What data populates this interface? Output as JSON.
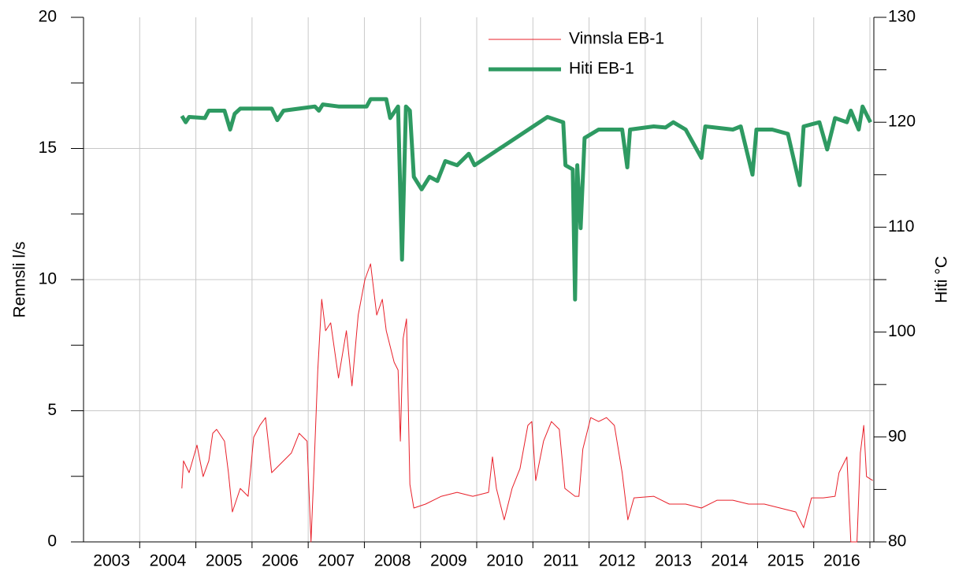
{
  "chart_data": {
    "type": "line",
    "ylabel": "Rennsli l/s",
    "y2label": "Hiti °C",
    "xlim": [
      2003,
      2017.07
    ],
    "xticks": [
      {
        "value": 2003.5,
        "label": "2003"
      },
      {
        "value": 2004.5,
        "label": "2004"
      },
      {
        "value": 2005.5,
        "label": "2005"
      },
      {
        "value": 2006.5,
        "label": "2006"
      },
      {
        "value": 2007.5,
        "label": "2007"
      },
      {
        "value": 2008.5,
        "label": "2008"
      },
      {
        "value": 2009.5,
        "label": "2009"
      },
      {
        "value": 2010.5,
        "label": "2010"
      },
      {
        "value": 2011.5,
        "label": "2011"
      },
      {
        "value": 2012.5,
        "label": "2012"
      },
      {
        "value": 2013.5,
        "label": "2013"
      },
      {
        "value": 2014.5,
        "label": "2014"
      },
      {
        "value": 2015.5,
        "label": "2015"
      },
      {
        "value": 2016.5,
        "label": "2016"
      }
    ],
    "xgrid": [
      2004,
      2005,
      2006,
      2007,
      2008,
      2009,
      2010,
      2011,
      2012,
      2013,
      2014,
      2015,
      2016,
      2017
    ],
    "ylim": [
      0,
      20
    ],
    "yticks": [
      0,
      5,
      10,
      15,
      20
    ],
    "yminor": [
      2.5,
      7.5,
      12.5,
      17.5
    ],
    "y2lim": [
      80,
      130
    ],
    "y2ticks": [
      80,
      90,
      100,
      110,
      120,
      130
    ],
    "y2minor": [
      85,
      95,
      105,
      115,
      125
    ],
    "grid": true,
    "legend": "upper center",
    "series": [
      {
        "name": "Vinnsla EB-1",
        "color": "#e8202a",
        "width": 1,
        "axis": "y",
        "x": [
          2004.75,
          2004.78,
          2004.88,
          2005.02,
          2005.13,
          2005.23,
          2005.3,
          2005.37,
          2005.51,
          2005.58,
          2005.65,
          2005.79,
          2005.93,
          2006.03,
          2006.14,
          2006.24,
          2006.35,
          2006.49,
          2006.7,
          2006.84,
          2006.98,
          2007.05,
          2007.1,
          2007.17,
          2007.24,
          2007.31,
          2007.4,
          2007.54,
          2007.68,
          2007.78,
          2007.89,
          2008.01,
          2008.11,
          2008.22,
          2008.32,
          2008.39,
          2008.53,
          2008.6,
          2008.64,
          2008.69,
          2008.75,
          2008.81,
          2008.88,
          2009.09,
          2009.37,
          2009.65,
          2009.93,
          2010.21,
          2010.28,
          2010.35,
          2010.49,
          2010.63,
          2010.77,
          2010.91,
          2010.98,
          2011.05,
          2011.19,
          2011.33,
          2011.47,
          2011.57,
          2011.75,
          2011.82,
          2011.89,
          2012.03,
          2012.17,
          2012.31,
          2012.45,
          2012.59,
          2012.69,
          2012.8,
          2013.15,
          2013.43,
          2013.72,
          2014.0,
          2014.28,
          2014.56,
          2014.84,
          2015.12,
          2015.4,
          2015.68,
          2015.82,
          2015.96,
          2016.17,
          2016.38,
          2016.45,
          2016.52,
          2016.59,
          2016.66,
          2016.77,
          2016.83,
          2016.89,
          2016.94,
          2017.05
        ],
        "values": [
          2.04,
          3.09,
          2.64,
          3.69,
          2.49,
          3.09,
          4.14,
          4.29,
          3.84,
          2.64,
          1.14,
          2.04,
          1.74,
          3.99,
          4.44,
          4.74,
          2.64,
          2.94,
          3.39,
          4.14,
          3.84,
          0,
          2.64,
          6.55,
          9.25,
          8.05,
          8.35,
          6.25,
          8.05,
          5.95,
          8.65,
          10.0,
          10.6,
          8.65,
          9.25,
          8.05,
          6.85,
          6.55,
          3.84,
          7.75,
          8.5,
          2.19,
          1.29,
          1.44,
          1.74,
          1.89,
          1.74,
          1.89,
          3.24,
          2.04,
          0.84,
          2.04,
          2.79,
          4.44,
          4.59,
          2.34,
          3.84,
          4.59,
          4.29,
          2.04,
          1.74,
          1.74,
          3.54,
          4.74,
          4.59,
          4.74,
          4.44,
          2.64,
          0.84,
          1.68,
          1.74,
          1.44,
          1.44,
          1.29,
          1.59,
          1.59,
          1.44,
          1.44,
          1.29,
          1.14,
          0.54,
          1.68,
          1.68,
          1.74,
          2.64,
          2.94,
          3.24,
          0,
          0,
          3.39,
          4.44,
          2.49,
          2.34
        ]
      },
      {
        "name": "Hiti EB-1",
        "color": "#2e9a62",
        "width": 5,
        "axis": "y2",
        "x": [
          2004.75,
          2004.82,
          2004.88,
          2005.16,
          2005.23,
          2005.51,
          2005.61,
          2005.69,
          2005.79,
          2006.35,
          2006.45,
          2006.56,
          2007.12,
          2007.19,
          2007.26,
          2007.54,
          2008.04,
          2008.11,
          2008.39,
          2008.46,
          2008.6,
          2008.67,
          2008.74,
          2008.81,
          2008.88,
          2009.02,
          2009.16,
          2009.3,
          2009.44,
          2009.65,
          2009.86,
          2009.96,
          2011.26,
          2011.54,
          2011.58,
          2011.71,
          2011.75,
          2011.79,
          2011.85,
          2011.92,
          2012.17,
          2012.59,
          2012.68,
          2012.73,
          2013.15,
          2013.36,
          2013.5,
          2013.72,
          2014.0,
          2014.07,
          2014.56,
          2014.7,
          2014.91,
          2014.98,
          2015.26,
          2015.54,
          2015.75,
          2015.82,
          2016.1,
          2016.24,
          2016.38,
          2016.59,
          2016.66,
          2016.8,
          2016.87,
          2017.01
        ],
        "values": [
          120.6,
          120.0,
          120.5,
          120.4,
          121.1,
          121.1,
          119.3,
          120.8,
          121.3,
          121.3,
          120.2,
          121.1,
          121.5,
          121.1,
          121.7,
          121.5,
          121.5,
          122.2,
          122.2,
          120.4,
          121.5,
          106.9,
          121.5,
          121.1,
          114.8,
          113.6,
          114.8,
          114.4,
          116.3,
          115.9,
          117.0,
          115.9,
          120.5,
          120.0,
          115.9,
          115.5,
          103.1,
          115.9,
          109.9,
          118.5,
          119.3,
          119.3,
          115.7,
          119.3,
          119.6,
          119.5,
          120.0,
          119.3,
          116.6,
          119.6,
          119.3,
          119.6,
          115.0,
          119.3,
          119.3,
          118.9,
          114.0,
          119.6,
          120.0,
          117.4,
          120.4,
          120.0,
          121.1,
          119.3,
          121.5,
          120.0
        ]
      }
    ]
  }
}
